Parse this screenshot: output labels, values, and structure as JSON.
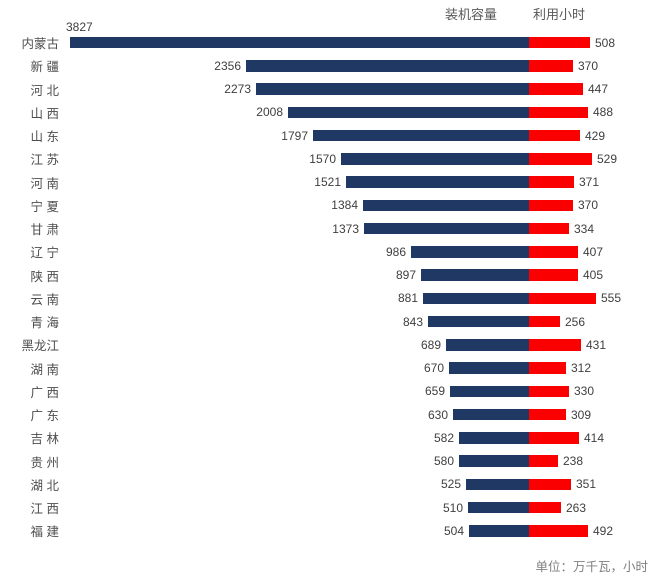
{
  "legend": {
    "capacity_label": "装机容量",
    "hours_label": "利用小时"
  },
  "footer": {
    "unit_note": "单位：万千瓦，小时"
  },
  "colors": {
    "capacity_bar": "#1F3864",
    "hours_bar": "#FB0000",
    "label_text": "#3f3f3f",
    "category_text": "#4d4d4d",
    "header_text": "#595959",
    "footer_text": "#7f7f7f"
  },
  "chart_data": {
    "type": "bar",
    "orientation": "horizontal",
    "layout": "paired-diverging-from-common-baseline",
    "legend_position": "top-right",
    "grid": false,
    "axes_visible": false,
    "value_labels": "outside-ends",
    "unit_note": "单位：万千瓦，小时",
    "categories": [
      "内蒙古",
      "新 疆",
      "河 北",
      "山 西",
      "山 东",
      "江 苏",
      "河 南",
      "宁 夏",
      "甘 肃",
      "辽 宁",
      "陕 西",
      "云 南",
      "青 海",
      "黑龙江",
      "湖 南",
      "广 西",
      "广 东",
      "吉 林",
      "贵 州",
      "湖 北",
      "江 西",
      "福 建"
    ],
    "series": [
      {
        "name": "装机容量",
        "unit": "万千瓦",
        "color": "#1F3864",
        "direction": "left-of-baseline",
        "values": [
          3827,
          2356,
          2273,
          2008,
          1797,
          1570,
          1521,
          1384,
          1373,
          986,
          897,
          881,
          843,
          689,
          670,
          659,
          630,
          582,
          580,
          525,
          510,
          504
        ]
      },
      {
        "name": "利用小时",
        "unit": "小时",
        "color": "#FB0000",
        "direction": "right-of-baseline",
        "values": [
          508,
          370,
          447,
          488,
          429,
          529,
          371,
          370,
          334,
          407,
          405,
          555,
          256,
          431,
          312,
          330,
          309,
          414,
          238,
          351,
          263,
          492
        ]
      }
    ]
  }
}
